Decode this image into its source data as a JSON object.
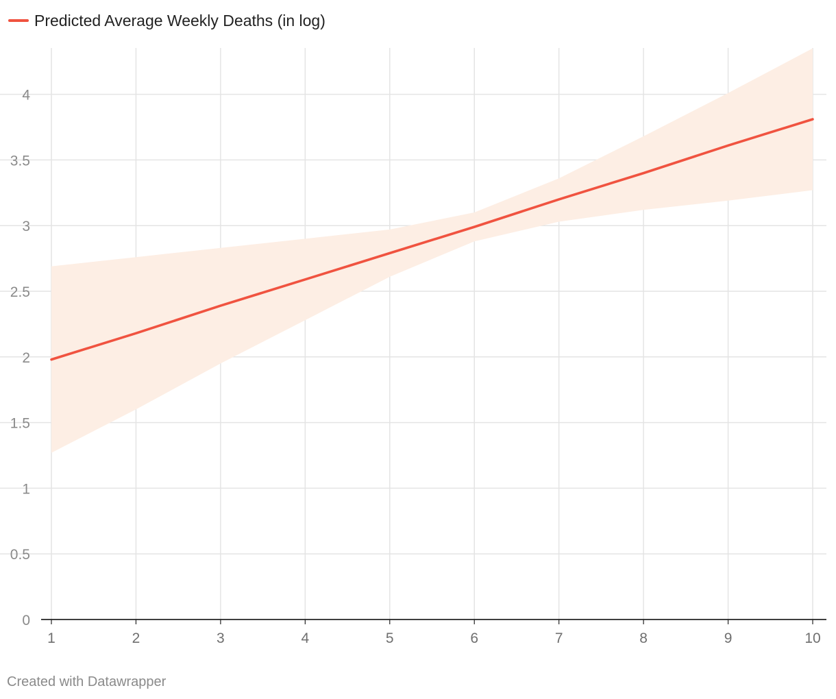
{
  "chart_data": {
    "type": "line",
    "title": "",
    "xlabel": "",
    "ylabel": "",
    "x": [
      1,
      2,
      3,
      4,
      5,
      6,
      7,
      8,
      9,
      10
    ],
    "xlim": [
      1,
      10
    ],
    "ylim": [
      0,
      4.35
    ],
    "x_ticks": [
      "1",
      "2",
      "3",
      "4",
      "5",
      "6",
      "7",
      "8",
      "9",
      "10"
    ],
    "y_ticks": [
      {
        "value": 0,
        "label": "0"
      },
      {
        "value": 0.5,
        "label": "0.5"
      },
      {
        "value": 1,
        "label": "1"
      },
      {
        "value": 1.5,
        "label": "1.5"
      },
      {
        "value": 2,
        "label": "2"
      },
      {
        "value": 2.5,
        "label": "2.5"
      },
      {
        "value": 3,
        "label": "3"
      },
      {
        "value": 3.5,
        "label": "3.5"
      },
      {
        "value": 4,
        "label": "4"
      }
    ],
    "grid": true,
    "legend_position": "top-left",
    "series": [
      {
        "name": "Predicted Average Weekly Deaths (in log)",
        "color": "#f05340",
        "values": [
          1.98,
          2.18,
          2.39,
          2.59,
          2.79,
          2.99,
          3.2,
          3.4,
          3.61,
          3.81
        ]
      }
    ],
    "confidence_band": {
      "color": "#fdeee4",
      "upper": [
        2.69,
        2.76,
        2.83,
        2.9,
        2.97,
        3.1,
        3.36,
        3.68,
        4.01,
        4.35
      ],
      "lower": [
        1.27,
        1.6,
        1.95,
        2.28,
        2.61,
        2.88,
        3.03,
        3.12,
        3.19,
        3.27
      ]
    }
  },
  "legend": {
    "label": "Predicted Average Weekly Deaths (in log)"
  },
  "footer": {
    "credit": "Created with Datawrapper"
  },
  "colors": {
    "line": "#f05340",
    "band": "#fdeee4",
    "grid": "#e4e4e4",
    "axis": "#222222"
  }
}
